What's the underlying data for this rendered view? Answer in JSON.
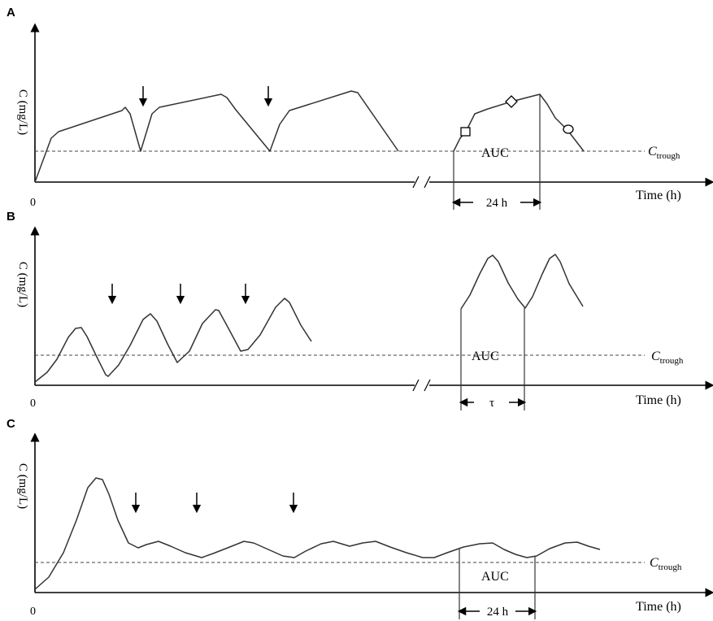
{
  "panels": [
    {
      "letter": "A",
      "ylabel": "C (mg/L)",
      "origin": "0",
      "xlabel": "Time (h)",
      "trough_main": "C",
      "trough_sub": "trough",
      "auc": "AUC",
      "interval": "24 h"
    },
    {
      "letter": "B",
      "ylabel": "C (mg/L)",
      "origin": "0",
      "xlabel": "Time (h)",
      "trough_main": "C",
      "trough_sub": "trough",
      "auc": "AUC",
      "interval": "τ"
    },
    {
      "letter": "C",
      "ylabel": "C (mg/L)",
      "origin": "0",
      "xlabel": "Time (h)",
      "trough_main": "C",
      "trough_sub": "trough",
      "auc": "AUC",
      "interval": "24 h"
    }
  ]
}
